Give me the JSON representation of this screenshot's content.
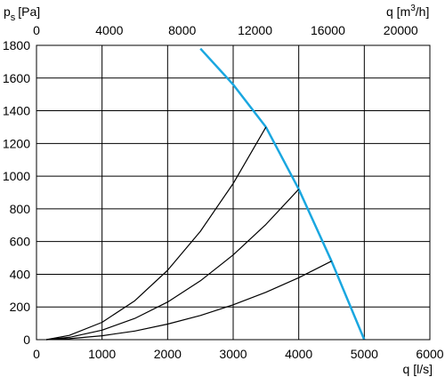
{
  "chart_data": {
    "type": "line",
    "ylabel": "p",
    "ylabel_sub": "s",
    "ylabel_unit": "[Pa]",
    "xlabel": "q [l/s]",
    "x2label_prefix": "q [m",
    "x2label_sup": "3",
    "x2label_suffix": "/h]",
    "xlim": [
      0,
      6000
    ],
    "ylim": [
      0,
      1800
    ],
    "x2lim": [
      0,
      21600
    ],
    "xticks": [
      0,
      1000,
      2000,
      3000,
      4000,
      5000,
      6000
    ],
    "yticks": [
      0,
      200,
      400,
      600,
      800,
      1000,
      1200,
      1400,
      1600,
      1800
    ],
    "x2ticks": [
      0,
      4000,
      8000,
      12000,
      16000,
      20000
    ],
    "grid": true,
    "series": [
      {
        "color": "#1aa7e0",
        "x": [
          2500,
          3000,
          3500,
          4000,
          4500,
          5000
        ],
        "y": [
          1780,
          1560,
          1300,
          920,
          480,
          0
        ]
      },
      {
        "color": "#000000",
        "x": [
          150,
          500,
          1000,
          1500,
          2000,
          2500,
          3000,
          3500
        ],
        "y": [
          0,
          26,
          106,
          238,
          424,
          663,
          955,
          1300
        ]
      },
      {
        "color": "#000000",
        "x": [
          150,
          500,
          1000,
          1500,
          2000,
          2500,
          3000,
          3500,
          4000
        ],
        "y": [
          0,
          14,
          58,
          130,
          230,
          360,
          518,
          705,
          920
        ]
      },
      {
        "color": "#000000",
        "x": [
          150,
          500,
          1000,
          1500,
          2000,
          2500,
          3000,
          3500,
          4000,
          4500
        ],
        "y": [
          0,
          6,
          24,
          53,
          95,
          148,
          213,
          290,
          379,
          480
        ]
      }
    ]
  }
}
